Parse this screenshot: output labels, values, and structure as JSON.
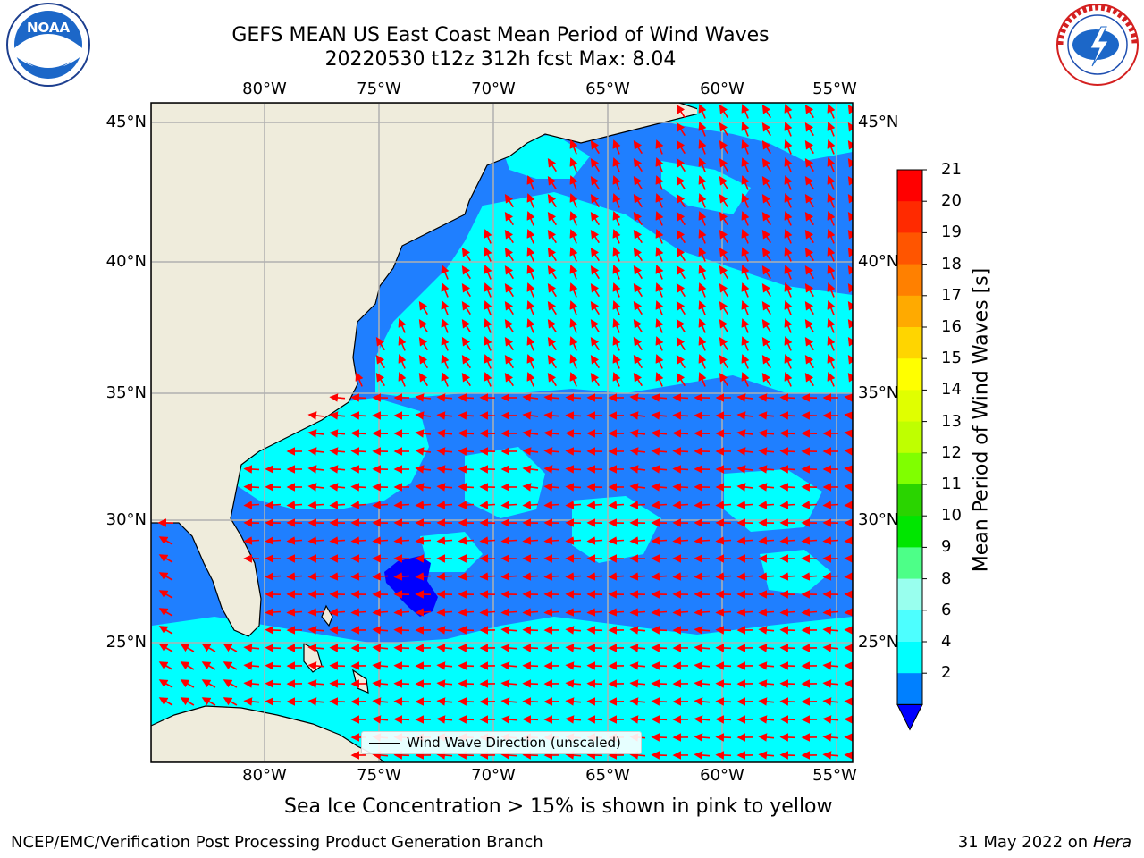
{
  "title_line1": "GEFS MEAN US East Coast Mean Period of Wind Waves",
  "title_line2": "20220530 t12z 312h fcst   Max: 8.04",
  "lon_ticks": [
    "80°W",
    "75°W",
    "70°W",
    "65°W",
    "60°W",
    "55°W"
  ],
  "lat_ticks": [
    "45°N",
    "40°N",
    "35°N",
    "30°N",
    "25°N"
  ],
  "colorbar": {
    "label": "Mean Period of Wind Waves [s]",
    "ticks": [
      "21",
      "20",
      "19",
      "18",
      "17",
      "16",
      "15",
      "14",
      "13",
      "12",
      "11",
      "10",
      "9",
      "8",
      "6",
      "4",
      "2"
    ],
    "colors": [
      "#ff0000",
      "#ff2a00",
      "#ff5500",
      "#ff8000",
      "#ffaa00",
      "#ffd500",
      "#ffff00",
      "#e0ff00",
      "#bfff00",
      "#80ff00",
      "#2ad400",
      "#00e600",
      "#4dff88",
      "#99ffee",
      "#4dffff",
      "#00ffff",
      "#0080ff"
    ],
    "under_color": "#0000ff"
  },
  "legend": {
    "label": "Wind Wave Direction (unscaled)"
  },
  "note": "Sea Ice Concentration > 15% is shown in pink to yellow",
  "footer": {
    "left": "NCEP/EMC/Verification Post Processing Product Generation Branch",
    "right_date": "31 May 2022 on",
    "right_host": "Hera"
  },
  "logos": {
    "noaa_text": "NOAA",
    "nws_text": "NATIONAL WEATHER SERVICE"
  },
  "colors": {
    "land": "#efecdc",
    "ocean_low": "#1f7fff",
    "ocean_mid": "#00ffff",
    "ocean_min": "#0000ff",
    "arrows": "#ff0000",
    "grid": "#b0b0b0"
  }
}
